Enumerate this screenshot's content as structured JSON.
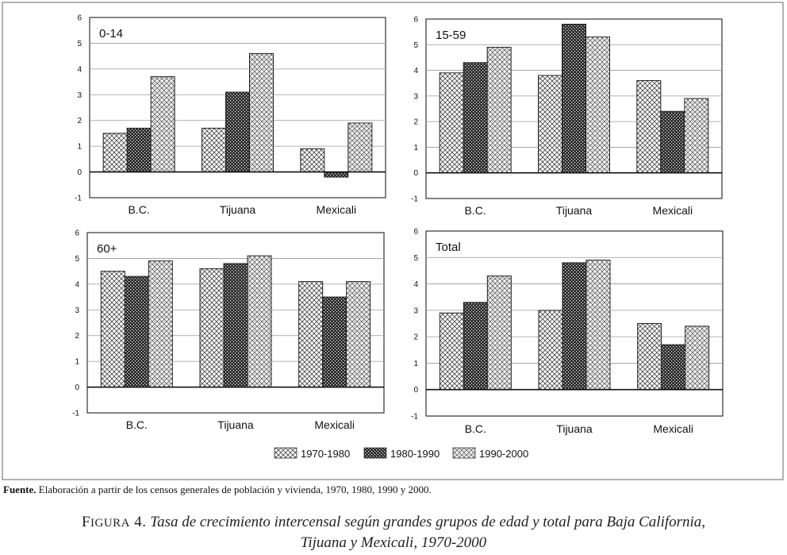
{
  "chart_data": [
    {
      "type": "bar",
      "title": "0-14",
      "categories": [
        "B.C.",
        "Tijuana",
        "Mexicali"
      ],
      "ylim": [
        -1,
        6
      ],
      "yticks": [
        -1,
        0,
        1,
        2,
        3,
        4,
        5,
        6
      ],
      "series": [
        {
          "name": "1970-1980",
          "values": [
            1.5,
            1.7,
            0.9
          ]
        },
        {
          "name": "1980-1990",
          "values": [
            1.7,
            3.1,
            -0.2
          ]
        },
        {
          "name": "1990-2000",
          "values": [
            3.7,
            4.6,
            1.9
          ]
        }
      ]
    },
    {
      "type": "bar",
      "title": "15-59",
      "categories": [
        "B.C.",
        "Tijuana",
        "Mexicali"
      ],
      "ylim": [
        -1,
        6
      ],
      "yticks": [
        -1,
        0,
        1,
        2,
        3,
        4,
        5,
        6
      ],
      "series": [
        {
          "name": "1970-1980",
          "values": [
            3.9,
            3.8,
            3.6
          ]
        },
        {
          "name": "1980-1990",
          "values": [
            4.3,
            5.8,
            2.4
          ]
        },
        {
          "name": "1990-2000",
          "values": [
            4.9,
            5.3,
            2.9
          ]
        }
      ]
    },
    {
      "type": "bar",
      "title": "60+",
      "categories": [
        "B.C.",
        "Tijuana",
        "Mexicali"
      ],
      "ylim": [
        -1,
        6
      ],
      "yticks": [
        -1,
        0,
        1,
        2,
        3,
        4,
        5,
        6
      ],
      "series": [
        {
          "name": "1970-1980",
          "values": [
            4.5,
            4.6,
            4.1
          ]
        },
        {
          "name": "1980-1990",
          "values": [
            4.3,
            4.8,
            3.5
          ]
        },
        {
          "name": "1990-2000",
          "values": [
            4.9,
            5.1,
            4.1
          ]
        }
      ]
    },
    {
      "type": "bar",
      "title": "Total",
      "categories": [
        "B.C.",
        "Tijuana",
        "Mexicali"
      ],
      "ylim": [
        -1,
        6
      ],
      "yticks": [
        -1,
        0,
        1,
        2,
        3,
        4,
        5,
        6
      ],
      "series": [
        {
          "name": "1970-1980",
          "values": [
            2.9,
            3.0,
            2.5
          ]
        },
        {
          "name": "1980-1990",
          "values": [
            3.3,
            4.8,
            1.7
          ]
        },
        {
          "name": "1990-2000",
          "values": [
            4.3,
            4.9,
            2.4
          ]
        }
      ]
    }
  ],
  "legend": [
    "1970-1980",
    "1980-1990",
    "1990-2000"
  ],
  "source": {
    "label": "Fuente.",
    "text": "Elaboración a partir de los censos generales de población y vivienda, 1970, 1980, 1990 y 2000."
  },
  "caption": {
    "label_first": "F",
    "label_rest": "IGURA",
    "number": "4.",
    "line1": "Tasa de crecimiento intercensal según grandes grupos de edad y total para Baja California,",
    "line2": "Tijuana y Mexicali, 1970-2000"
  },
  "colors": {
    "series_dark": "#2a2a2a",
    "series_mid": "#555555",
    "series_light": "#666666",
    "frame": "#333333"
  }
}
